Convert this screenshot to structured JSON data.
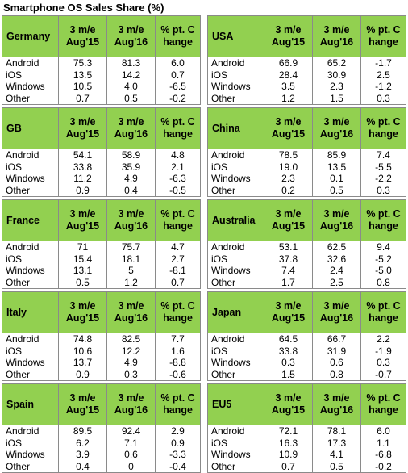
{
  "title": "Smartphone OS Sales Share (%)",
  "headers": {
    "col1": "3 m/e Aug'15",
    "col2": "3 m/e Aug'16",
    "col3": "% pt. Change"
  },
  "os_labels": [
    "Android",
    "iOS",
    "Windows",
    "Other"
  ],
  "regions": [
    {
      "name": "Germany",
      "rows": [
        [
          "Android",
          "75.3",
          "81.3",
          "6.0"
        ],
        [
          "iOS",
          "13.5",
          "14.2",
          "0.7"
        ],
        [
          "Windows",
          "10.5",
          "4.0",
          "-6.5"
        ],
        [
          "Other",
          "0.7",
          "0.5",
          "-0.2"
        ]
      ]
    },
    {
      "name": "USA",
      "rows": [
        [
          "Android",
          "66.9",
          "65.2",
          "-1.7"
        ],
        [
          "iOS",
          "28.4",
          "30.9",
          "2.5"
        ],
        [
          "Windows",
          "3.5",
          "2.3",
          "-1.2"
        ],
        [
          "Other",
          "1.2",
          "1.5",
          "0.3"
        ]
      ]
    },
    {
      "name": "GB",
      "rows": [
        [
          "Android",
          "54.1",
          "58.9",
          "4.8"
        ],
        [
          "iOS",
          "33.8",
          "35.9",
          "2.1"
        ],
        [
          "Windows",
          "11.2",
          "4.9",
          "-6.3"
        ],
        [
          "Other",
          "0.9",
          "0.4",
          "-0.5"
        ]
      ]
    },
    {
      "name": "China",
      "rows": [
        [
          "Android",
          "78.5",
          "85.9",
          "7.4"
        ],
        [
          "iOS",
          "19.0",
          "13.5",
          "-5.5"
        ],
        [
          "Windows",
          "2.3",
          "0.1",
          "-2.2"
        ],
        [
          "Other",
          "0.2",
          "0.5",
          "0.3"
        ]
      ]
    },
    {
      "name": "France",
      "rows": [
        [
          "Android",
          "71",
          "75.7",
          "4.7"
        ],
        [
          "iOS",
          "15.4",
          "18.1",
          "2.7"
        ],
        [
          "Windows",
          "13.1",
          "5",
          "-8.1"
        ],
        [
          "Other",
          "0.5",
          "1.2",
          "0.7"
        ]
      ]
    },
    {
      "name": "Australia",
      "rows": [
        [
          "Android",
          "53.1",
          "62.5",
          "9.4"
        ],
        [
          "iOS",
          "37.8",
          "32.6",
          "-5.2"
        ],
        [
          "Windows",
          "7.4",
          "2.4",
          "-5.0"
        ],
        [
          "Other",
          "1.7",
          "2.5",
          "0.8"
        ]
      ]
    },
    {
      "name": "Italy",
      "rows": [
        [
          "Android",
          "74.8",
          "82.5",
          "7.7"
        ],
        [
          "iOS",
          "10.6",
          "12.2",
          "1.6"
        ],
        [
          "Windows",
          "13.7",
          "4.9",
          "-8.8"
        ],
        [
          "Other",
          "0.9",
          "0.3",
          "-0.6"
        ]
      ]
    },
    {
      "name": "Japan",
      "rows": [
        [
          "Android",
          "64.5",
          "66.7",
          "2.2"
        ],
        [
          "iOS",
          "33.8",
          "31.9",
          "-1.9"
        ],
        [
          "Windows",
          "0.3",
          "0.6",
          "0.3"
        ],
        [
          "Other",
          "1.5",
          "0.8",
          "-0.7"
        ]
      ]
    },
    {
      "name": "Spain",
      "rows": [
        [
          "Android",
          "89.5",
          "92.4",
          "2.9"
        ],
        [
          "iOS",
          "6.2",
          "7.1",
          "0.9"
        ],
        [
          "Windows",
          "3.9",
          "0.6",
          "-3.3"
        ],
        [
          "Other",
          "0.4",
          "0",
          "-0.4"
        ]
      ]
    },
    {
      "name": "EU5",
      "rows": [
        [
          "Android",
          "72.1",
          "78.1",
          "6.0"
        ],
        [
          "iOS",
          "16.3",
          "17.3",
          "1.1"
        ],
        [
          "Windows",
          "10.9",
          "4.1",
          "-6.8"
        ],
        [
          "Other",
          "0.7",
          "0.5",
          "-0.2"
        ]
      ]
    }
  ],
  "colors": {
    "header_fill": "#92d050",
    "border": "#8a8a8a"
  }
}
